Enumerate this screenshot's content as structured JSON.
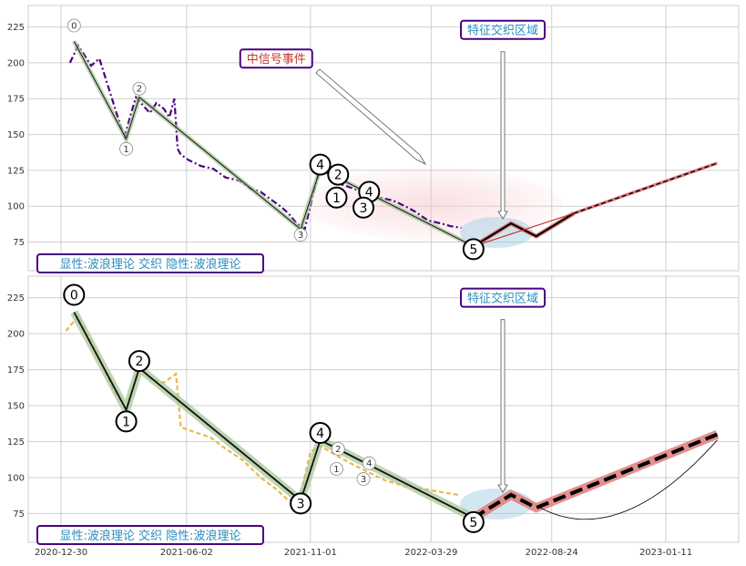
{
  "chart_data": [
    {
      "type": "line",
      "panel": "top",
      "x_ticks": [
        "2020-12-30",
        "2021-06-02",
        "2021-11-01",
        "2022-03-29",
        "2022-08-24",
        "2023-01-11"
      ],
      "y_ticks": [
        75,
        100,
        125,
        150,
        175,
        200,
        225
      ],
      "ylim": [
        55,
        240
      ],
      "grid": true,
      "series": [
        {
          "style": "dash-dot",
          "color": "#4b0082",
          "x": [
            "2021-01-10",
            "2021-01-20",
            "2021-01-28",
            "2021-02-05",
            "2021-02-15",
            "2021-02-25",
            "2021-03-08",
            "2021-03-18",
            "2021-03-25",
            "2021-04-01",
            "2021-04-10",
            "2021-04-18",
            "2021-04-26",
            "2021-05-05",
            "2021-05-12",
            "2021-05-18",
            "2021-05-22",
            "2021-05-26",
            "2021-06-05",
            "2021-06-20",
            "2021-07-05",
            "2021-07-20",
            "2021-08-05",
            "2021-08-20",
            "2021-09-01",
            "2021-09-15",
            "2021-09-25",
            "2021-10-05",
            "2021-10-15",
            "2021-10-25",
            "2021-11-05",
            "2021-11-12",
            "2021-11-25",
            "2021-12-10",
            "2021-12-25",
            "2022-01-10",
            "2022-01-25",
            "2022-02-10",
            "2022-02-25",
            "2022-03-10",
            "2022-03-25",
            "2022-04-10",
            "2022-04-22",
            "2022-05-05"
          ],
          "y": [
            200,
            212,
            205,
            198,
            203,
            185,
            165,
            148,
            163,
            176,
            170,
            165,
            172,
            168,
            162,
            175,
            140,
            136,
            132,
            128,
            126,
            120,
            118,
            112,
            110,
            104,
            100,
            95,
            88,
            84,
            110,
            125,
            122,
            115,
            112,
            108,
            106,
            104,
            100,
            96,
            90,
            88,
            86,
            85
          ]
        }
      ],
      "wave_lines": [
        {
          "x": [
            "2021-01-15",
            "2021-03-20",
            "2021-04-05",
            "2021-10-20",
            "2021-11-13"
          ],
          "y": [
            215,
            147,
            176,
            84,
            126
          ]
        },
        {
          "x": [
            "2021-11-13",
            "2022-05-20"
          ],
          "y": [
            126,
            72
          ]
        }
      ],
      "wave_labels_small": [
        {
          "text": "0",
          "x": "2021-01-15",
          "y": 226
        },
        {
          "text": "1",
          "x": "2021-03-20",
          "y": 140
        },
        {
          "text": "2",
          "x": "2021-04-05",
          "y": 182
        },
        {
          "text": "3",
          "x": "2021-10-20",
          "y": 80
        },
        {
          "text": "0",
          "x": "2021-11-13",
          "y": 129
        }
      ],
      "wave_labels_big": [
        {
          "text": "4",
          "x": "2021-11-13",
          "y": 129
        },
        {
          "text": "2",
          "x": "2021-12-05",
          "y": 122
        },
        {
          "text": "1",
          "x": "2021-12-03",
          "y": 106
        },
        {
          "text": "4",
          "x": "2022-01-12",
          "y": 110
        },
        {
          "text": "3",
          "x": "2022-01-05",
          "y": 99
        },
        {
          "text": "5",
          "x": "2022-05-20",
          "y": 70
        }
      ],
      "forecast": {
        "x": [
          "2022-05-20",
          "2022-07-05",
          "2022-08-05",
          "2022-09-20",
          "2023-03-15"
        ],
        "y": [
          72,
          88,
          79,
          95,
          130
        ]
      },
      "annotations": [
        {
          "text": "中信号事件",
          "color": "#c0392b",
          "x": "2021-09-20",
          "y": 203
        },
        {
          "text": "特征交织区域",
          "color": "#2b8cbe",
          "x": "2022-06-25",
          "y": 223
        }
      ],
      "legend_text": "显性:波浪理论 交织 隐性:波浪理论"
    },
    {
      "type": "line",
      "panel": "bottom",
      "x_ticks": [
        "2020-12-30",
        "2021-06-02",
        "2021-11-01",
        "2022-03-29",
        "2022-08-24",
        "2023-01-11"
      ],
      "y_ticks": [
        75,
        100,
        125,
        150,
        175,
        200,
        225
      ],
      "ylim": [
        55,
        240
      ],
      "grid": true,
      "series": [
        {
          "style": "dashed",
          "color": "#e8b84a",
          "x": [
            "2021-01-05",
            "2021-01-20",
            "2021-02-05",
            "2021-03-05",
            "2021-03-20",
            "2021-04-05",
            "2021-04-20",
            "2021-05-05",
            "2021-05-20",
            "2021-05-26",
            "2021-06-10",
            "2021-07-01",
            "2021-07-20",
            "2021-08-10",
            "2021-09-01",
            "2021-09-20",
            "2021-10-05",
            "2021-10-20",
            "2021-11-01",
            "2021-11-13",
            "2021-12-01",
            "2021-12-20",
            "2022-01-10",
            "2022-02-01",
            "2022-02-25",
            "2022-03-20",
            "2022-04-10",
            "2022-05-01"
          ],
          "y": [
            202,
            212,
            195,
            160,
            148,
            178,
            168,
            166,
            172,
            135,
            132,
            128,
            120,
            112,
            100,
            92,
            84,
            88,
            118,
            122,
            116,
            110,
            104,
            98,
            94,
            92,
            90,
            88
          ]
        }
      ],
      "wave_lines": [
        {
          "x": [
            "2021-01-15",
            "2021-03-20",
            "2021-04-05",
            "2021-10-20",
            "2021-11-13",
            "2022-05-20"
          ],
          "y": [
            215,
            147,
            176,
            84,
            126,
            72
          ]
        }
      ],
      "wave_labels_big": [
        {
          "text": "0",
          "x": "2021-01-15",
          "y": 227
        },
        {
          "text": "1",
          "x": "2021-03-20",
          "y": 139
        },
        {
          "text": "2",
          "x": "2021-04-05",
          "y": 181
        },
        {
          "text": "3",
          "x": "2021-10-20",
          "y": 82
        },
        {
          "text": "4",
          "x": "2021-11-13",
          "y": 131
        },
        {
          "text": "5",
          "x": "2022-05-20",
          "y": 69
        }
      ],
      "wave_labels_small": [
        {
          "text": "2",
          "x": "2021-12-05",
          "y": 120
        },
        {
          "text": "1",
          "x": "2021-12-03",
          "y": 106
        },
        {
          "text": "4",
          "x": "2022-01-12",
          "y": 110
        },
        {
          "text": "3",
          "x": "2022-01-05",
          "y": 99
        }
      ],
      "forecast": {
        "x": [
          "2022-05-20",
          "2022-07-05",
          "2022-08-05",
          "2023-03-15"
        ],
        "y": [
          72,
          88,
          79,
          130
        ]
      },
      "annotations": [
        {
          "text": "特征交织区域",
          "color": "#2b8cbe",
          "x": "2022-06-25",
          "y": 225
        }
      ],
      "legend_text": "显性:波浪理论 交织 隐性:波浪理论"
    }
  ]
}
